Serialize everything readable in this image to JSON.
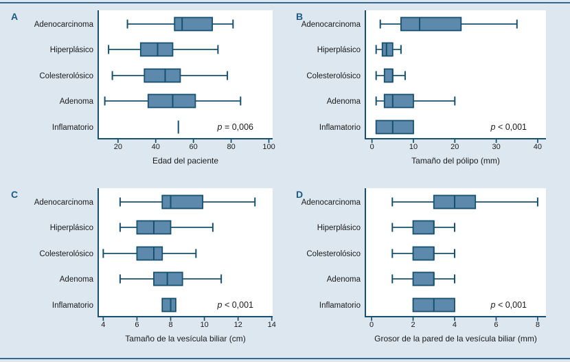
{
  "figure": {
    "name": "Box plot figure with four panels",
    "colors": {
      "background": "#dce7f0",
      "plot_background": "#ffffff",
      "box_fill": "#5d8aac",
      "line": "#17506e",
      "text": "#1a1a1a",
      "panel_letter": "#1c5a86",
      "edge_rule": "#35688f"
    }
  },
  "chart_data": [
    {
      "type": "boxplot-horizontal",
      "panel_label": "A",
      "xlabel": "Edad del paciente",
      "p_label": "p = 0,006",
      "xdomain": [
        9.5,
        102
      ],
      "ticks": [
        "20",
        "40",
        "60",
        "80",
        "100"
      ],
      "tick_values": [
        20,
        40,
        60,
        80,
        100
      ],
      "categories": [
        "Adenocarcinoma",
        "Hiperplásico",
        "Colesterolósico",
        "Adenoma",
        "Inflamatorio"
      ],
      "rows": [
        {
          "category": "Adenocarcinoma",
          "low": 25,
          "q1": 50,
          "median": 54,
          "q3": 70,
          "high": 81
        },
        {
          "category": "Hiperplásico",
          "low": 15,
          "q1": 32,
          "median": 41,
          "q3": 49,
          "high": 73
        },
        {
          "category": "Colesterolósico",
          "low": 17,
          "q1": 34,
          "median": 45,
          "q3": 53,
          "high": 78
        },
        {
          "category": "Adenoma",
          "low": 13,
          "q1": 36,
          "median": 49,
          "q3": 61,
          "high": 85
        },
        {
          "category": "Inflamatorio",
          "low": null,
          "q1": null,
          "median": 52,
          "q3": null,
          "high": null
        }
      ]
    },
    {
      "type": "boxplot-horizontal",
      "panel_label": "B",
      "xlabel": "Tamaño del pólipo (mm)",
      "p_label": "p < 0,001",
      "xdomain": [
        -1.6,
        42
      ],
      "ticks": [
        "0",
        "10",
        "20",
        "30",
        "40"
      ],
      "tick_values": [
        0,
        10,
        20,
        30,
        40
      ],
      "categories": [
        "Adenocarcinoma",
        "Hiperplásico",
        "Colesterolósico",
        "Adenoma",
        "Inflamatorio"
      ],
      "rows": [
        {
          "category": "Adenocarcinoma",
          "low": 2,
          "q1": 7,
          "median": 11.5,
          "q3": 21.5,
          "high": 35
        },
        {
          "category": "Hiperplásico",
          "low": 1,
          "q1": 2.5,
          "median": 3.5,
          "q3": 5,
          "high": 7
        },
        {
          "category": "Colesterolósico",
          "low": 1,
          "q1": 3,
          "median": 5,
          "q3": 5,
          "high": 8
        },
        {
          "category": "Adenoma",
          "low": 1,
          "q1": 3,
          "median": 5,
          "q3": 10,
          "high": 20
        },
        {
          "category": "Inflamatorio",
          "low": null,
          "q1": 1,
          "median": 5,
          "q3": 10,
          "high": null
        }
      ]
    },
    {
      "type": "boxplot-horizontal",
      "panel_label": "C",
      "xlabel": "Tamaño de la vesícula biliar (cm)",
      "p_label": "p < 0,001",
      "xdomain": [
        3.7,
        14.05
      ],
      "ticks": [
        "4",
        "6",
        "8",
        "10",
        "12",
        "14"
      ],
      "tick_values": [
        4,
        6,
        8,
        10,
        12,
        14
      ],
      "categories": [
        "Adenocarcinoma",
        "Hiperplásico",
        "Colesterolósico",
        "Adenoma",
        "Inflamatorio"
      ],
      "rows": [
        {
          "category": "Adenocarcinoma",
          "low": 5,
          "q1": 7.5,
          "median": 8,
          "q3": 9.9,
          "high": 13
        },
        {
          "category": "Hiperplásico",
          "low": 5,
          "q1": 6,
          "median": 7,
          "q3": 8,
          "high": 10.5
        },
        {
          "category": "Colesterolósico",
          "low": 4,
          "q1": 6,
          "median": 7,
          "q3": 7.5,
          "high": 9.5
        },
        {
          "category": "Adenoma",
          "low": 5,
          "q1": 7,
          "median": 7.8,
          "q3": 8.7,
          "high": 11
        },
        {
          "category": "Inflamatorio",
          "low": null,
          "q1": 7.5,
          "median": 8,
          "q3": 8.3,
          "high": null
        }
      ]
    },
    {
      "type": "boxplot-horizontal",
      "panel_label": "D",
      "xlabel": "Grosor de la pared de la vesícula biliar (mm)",
      "p_label": "p < 0,001",
      "xdomain": [
        -0.3,
        8.4
      ],
      "ticks": [
        "0",
        "2",
        "4",
        "6",
        "8"
      ],
      "tick_values": [
        0,
        2,
        4,
        6,
        8
      ],
      "categories": [
        "Adenocarcinoma",
        "Hiperplásico",
        "Colesterolósico",
        "Adenoma",
        "Inflamatorio"
      ],
      "rows": [
        {
          "category": "Adenocarcinoma",
          "low": 1,
          "q1": 3,
          "median": 4,
          "q3": 5,
          "high": 8
        },
        {
          "category": "Hiperplásico",
          "low": 1,
          "q1": 2,
          "median": 3,
          "q3": 3,
          "high": 4
        },
        {
          "category": "Colesterolósico",
          "low": 1,
          "q1": 2,
          "median": 3,
          "q3": 3,
          "high": 4
        },
        {
          "category": "Adenoma",
          "low": 1,
          "q1": 2,
          "median": 3,
          "q3": 3,
          "high": 4
        },
        {
          "category": "Inflamatorio",
          "low": null,
          "q1": 2,
          "median": 3,
          "q3": 4,
          "high": null
        }
      ]
    }
  ]
}
